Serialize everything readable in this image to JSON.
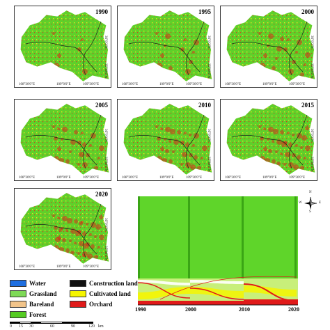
{
  "colors": {
    "water": "#1f6fe0",
    "grassland": "#7ed957",
    "bareland": "#f2c48a",
    "forest": "#55cc22",
    "construction": "#111111",
    "cultivated": "#f5f500",
    "orchard": "#e01a1a"
  },
  "maps": [
    {
      "year": "1990",
      "lon1": "108°30'0\"E",
      "lon2": "109°0'0\"E",
      "lon3": "109°30'0\"E",
      "lat1": "36°0'0\"N",
      "lat2": "35°30'0\"N"
    },
    {
      "year": "1995",
      "lon1": "108°30'0\"E",
      "lon2": "109°0'0\"E",
      "lon3": "109°30'0\"E",
      "lat1": "36°0'0\"N",
      "lat2": "35°30'0\"N"
    },
    {
      "year": "2000",
      "lon1": "108°30'0\"E",
      "lon2": "109°0'0\"E",
      "lon3": "109°30'0\"E",
      "lat1": "36°0'0\"N",
      "lat2": "35°30'0\"N"
    },
    {
      "year": "2005",
      "lon1": "108°30'0\"E",
      "lon2": "109°0'0\"E",
      "lon3": "109°30'0\"E",
      "lat1": "36°0'0\"N",
      "lat2": "35°30'0\"N"
    },
    {
      "year": "2010",
      "lon1": "108°30'0\"E",
      "lon2": "109°0'0\"E",
      "lon3": "109°30'0\"E",
      "lat1": "36°0'0\"N",
      "lat2": "35°30'0\"N"
    },
    {
      "year": "2015",
      "lon1": "108°30'0\"E",
      "lon2": "109°0'0\"E",
      "lon3": "109°30'0\"E",
      "lat1": "36°0'0\"N",
      "lat2": "35°30'0\"N"
    },
    {
      "year": "2020",
      "lon1": "108°30'0\"E",
      "lon2": "109°0'0\"E",
      "lon3": "109°30'0\"E",
      "lat1": "36°0'0\"N",
      "lat2": "35°30'0\"N"
    }
  ],
  "legend": {
    "water": "Water",
    "grassland": "Grassland",
    "bareland": "Bareland",
    "forest": "Forest",
    "construction": "Construction land",
    "cultivated": "Cultivated land",
    "orchard": "Orchard"
  },
  "scalebar": {
    "ticks": [
      "0",
      "15",
      "30",
      "60",
      "90",
      "120"
    ],
    "unit": "km"
  },
  "compass": {
    "n": "N",
    "s": "S",
    "e": "E",
    "w": "W"
  },
  "sankey": {
    "years": [
      "1990",
      "2000",
      "2010",
      "2020"
    ]
  }
}
